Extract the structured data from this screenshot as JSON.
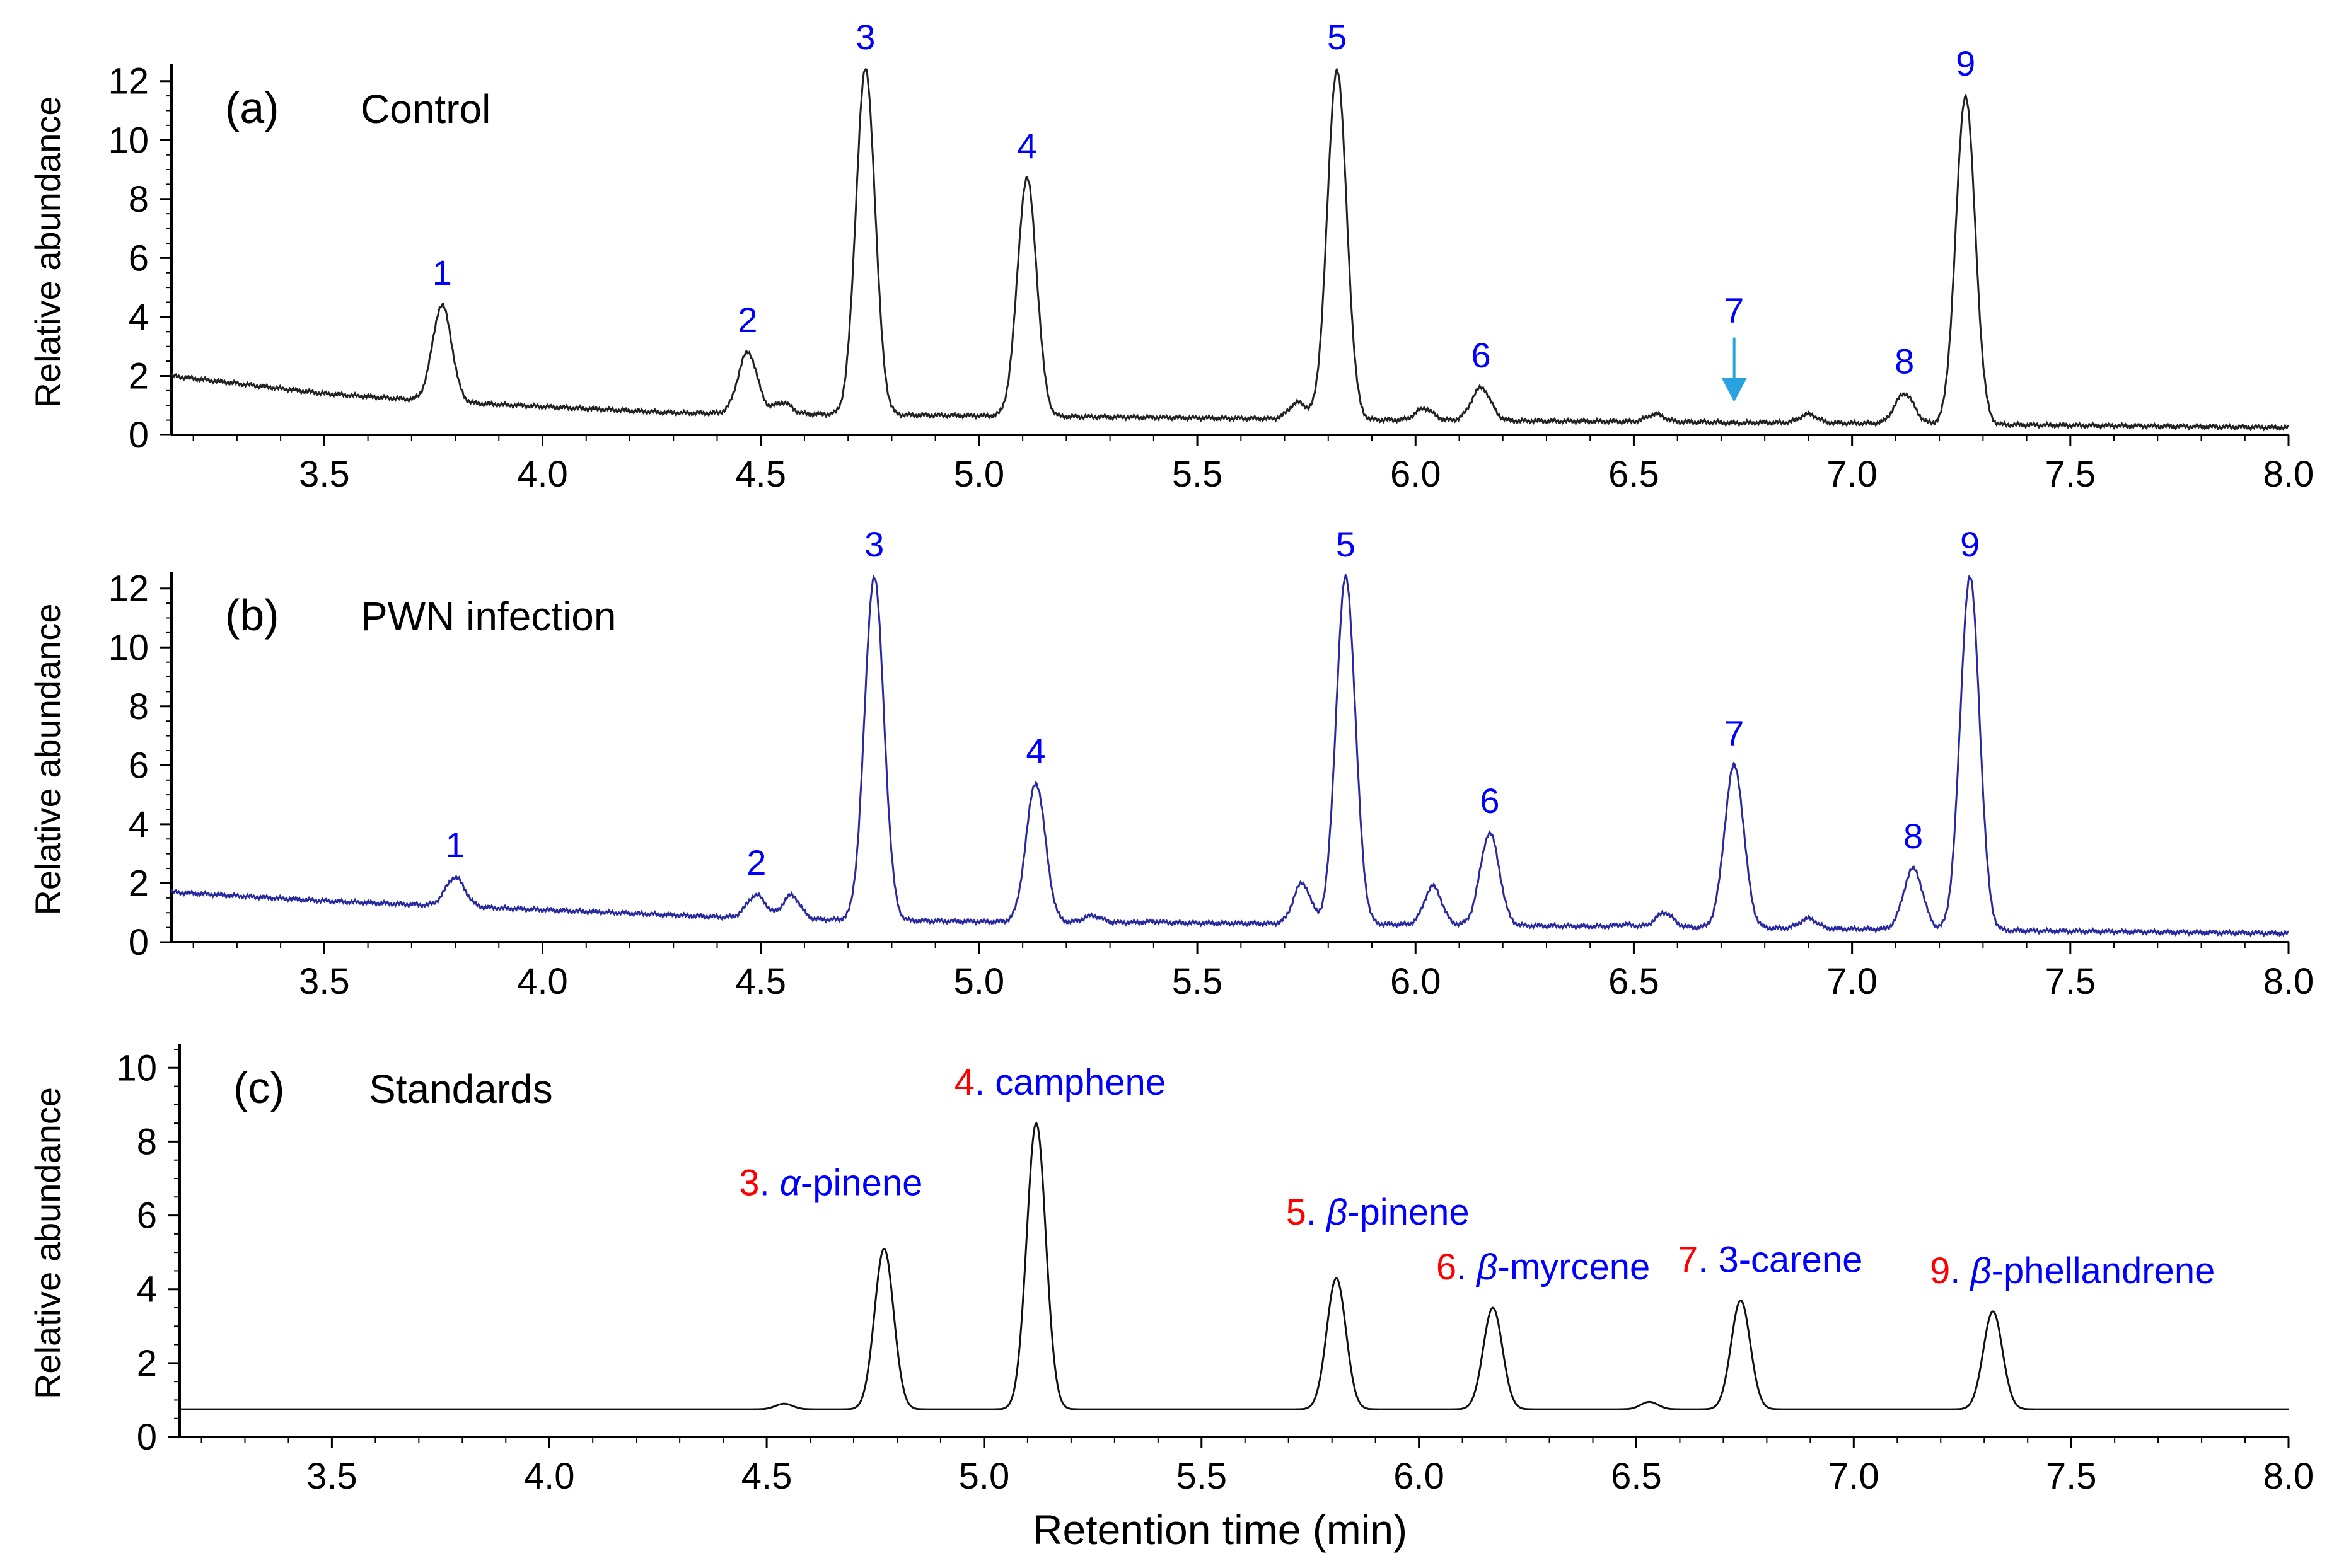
{
  "chart_data": {
    "type": "line",
    "xlabel": "Retention time (min)",
    "xlim": [
      3.15,
      8.0
    ],
    "xticks": [
      "3.5",
      "4.0",
      "4.5",
      "5.0",
      "5.5",
      "6.0",
      "6.5",
      "7.0",
      "7.5",
      "8.0"
    ],
    "panels": [
      {
        "id": "a",
        "title": "(a)",
        "subtitle": "Control",
        "ylabel": "Relative abundance",
        "ylim": [
          0,
          12.4
        ],
        "yticks": [
          "0",
          "2",
          "4",
          "6",
          "8",
          "10",
          "12"
        ],
        "line_color": "#222222",
        "baseline": [
          [
            3.15,
            2.0
          ],
          [
            3.5,
            1.4
          ],
          [
            3.8,
            1.1
          ],
          [
            4.3,
            0.75
          ],
          [
            5.0,
            0.65
          ],
          [
            6.0,
            0.5
          ],
          [
            7.0,
            0.4
          ],
          [
            8.0,
            0.25
          ]
        ],
        "peaks": [
          {
            "label": "1",
            "rt": 3.77,
            "height": 4.4
          },
          {
            "label": "",
            "rt": 4.55,
            "height": 1.1
          },
          {
            "label": "2",
            "rt": 4.47,
            "height": 2.8
          },
          {
            "label": "3",
            "rt": 4.74,
            "height": 12.4
          },
          {
            "label": "4",
            "rt": 5.11,
            "height": 8.7
          },
          {
            "label": "",
            "rt": 5.73,
            "height": 1.1
          },
          {
            "label": "5",
            "rt": 5.82,
            "height": 12.4
          },
          {
            "label": "",
            "rt": 6.02,
            "height": 0.9
          },
          {
            "label": "6",
            "rt": 6.15,
            "height": 1.6
          },
          {
            "label": "",
            "rt": 6.55,
            "height": 0.7
          },
          {
            "label": "7",
            "rt": 6.73,
            "height": 0.4
          },
          {
            "label": "",
            "rt": 6.9,
            "height": 0.7
          },
          {
            "label": "8",
            "rt": 7.12,
            "height": 1.4
          },
          {
            "label": "9",
            "rt": 7.26,
            "height": 11.5
          }
        ],
        "annotations": [
          {
            "type": "arrow",
            "target_peak": "7",
            "color": "#29a3e0"
          }
        ]
      },
      {
        "id": "b",
        "title": "(b)",
        "subtitle": "PWN infection",
        "ylabel": "Relative abundance",
        "ylim": [
          0,
          12.4
        ],
        "yticks": [
          "0",
          "2",
          "4",
          "6",
          "8",
          "10",
          "12"
        ],
        "line_color": "#2a2aa0",
        "baseline": [
          [
            3.15,
            1.7
          ],
          [
            3.5,
            1.4
          ],
          [
            4.0,
            1.1
          ],
          [
            4.5,
            0.8
          ],
          [
            5.0,
            0.7
          ],
          [
            6.0,
            0.6
          ],
          [
            7.0,
            0.45
          ],
          [
            8.0,
            0.3
          ]
        ],
        "peaks": [
          {
            "label": "1",
            "rt": 3.8,
            "height": 2.2
          },
          {
            "label": "2",
            "rt": 4.49,
            "height": 1.6
          },
          {
            "label": "",
            "rt": 4.57,
            "height": 1.6
          },
          {
            "label": "3",
            "rt": 4.76,
            "height": 12.4
          },
          {
            "label": "4",
            "rt": 5.13,
            "height": 5.4
          },
          {
            "label": "",
            "rt": 5.26,
            "height": 0.9
          },
          {
            "label": "",
            "rt": 5.4,
            "height": 0.7
          },
          {
            "label": "",
            "rt": 5.74,
            "height": 2.0
          },
          {
            "label": "5",
            "rt": 5.84,
            "height": 12.4
          },
          {
            "label": "",
            "rt": 6.04,
            "height": 1.9
          },
          {
            "label": "6",
            "rt": 6.17,
            "height": 3.7
          },
          {
            "label": "",
            "rt": 6.48,
            "height": 0.6
          },
          {
            "label": "",
            "rt": 6.57,
            "height": 1.0
          },
          {
            "label": "7",
            "rt": 6.73,
            "height": 6.0
          },
          {
            "label": "",
            "rt": 6.9,
            "height": 0.8
          },
          {
            "label": "8",
            "rt": 7.14,
            "height": 2.5
          },
          {
            "label": "9",
            "rt": 7.27,
            "height": 12.4
          }
        ]
      },
      {
        "id": "c",
        "title": "(c)",
        "subtitle": "Standards",
        "ylabel": "Relative abundance",
        "ylim": [
          0,
          10.5
        ],
        "yticks": [
          "0",
          "2",
          "4",
          "6",
          "8",
          "10"
        ],
        "line_color": "#111111",
        "baseline": [
          [
            3.15,
            0.75
          ],
          [
            8.0,
            0.75
          ]
        ],
        "peaks": [
          {
            "label": "",
            "rt": 4.54,
            "height": 0.9
          },
          {
            "label": "3",
            "rt": 4.77,
            "height": 5.1,
            "prefix": "α",
            "name": "-pinene"
          },
          {
            "label": "4",
            "rt": 5.12,
            "height": 8.5,
            "prefix": "",
            "name": "camphene"
          },
          {
            "label": "5",
            "rt": 5.81,
            "height": 4.3,
            "prefix": "β",
            "name": "-pinene"
          },
          {
            "label": "6",
            "rt": 6.17,
            "height": 3.5,
            "prefix": "β",
            "name": "-myrcene"
          },
          {
            "label": "",
            "rt": 6.53,
            "height": 0.95
          },
          {
            "label": "7",
            "rt": 6.74,
            "height": 3.7,
            "prefix": "",
            "name": "3-carene"
          },
          {
            "label": "9",
            "rt": 7.32,
            "height": 3.4,
            "prefix": "β",
            "name": "-phellandrene"
          }
        ]
      }
    ]
  }
}
